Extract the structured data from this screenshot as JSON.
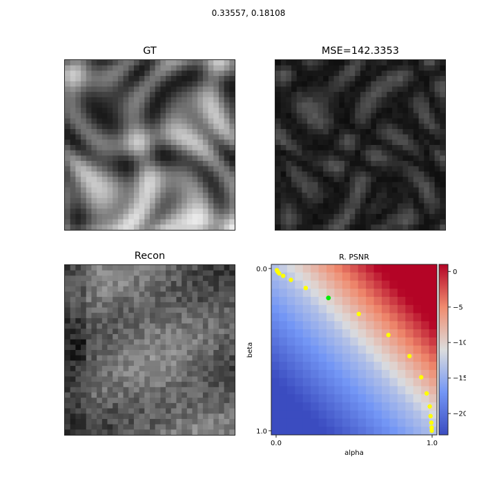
{
  "suptitle": "0.33557, 0.18108",
  "panels": {
    "gt_title": "GT",
    "mse_title": "MSE=142.3353",
    "recon_title": "Recon"
  },
  "chart_data": {
    "type": "heatmap",
    "title": "R. PSNR",
    "xlabel": "alpha",
    "ylabel": "beta",
    "x_ticks": [
      "0.0",
      "1.0"
    ],
    "y_ticks": [
      "0.0",
      "1.0"
    ],
    "xlim": [
      0.0,
      1.0
    ],
    "ylim": [
      0.0,
      1.0
    ],
    "y_inverted": true,
    "grid": false,
    "colormap": "coolwarm",
    "colorbar": {
      "range": [
        -23,
        1
      ],
      "ticks": [
        "0",
        "−5",
        "−10",
        "−15",
        "−20"
      ],
      "tick_values": [
        0,
        -5,
        -10,
        -15,
        -20
      ]
    },
    "points": [
      {
        "alpha": 0.005,
        "beta": 0.01
      },
      {
        "alpha": 0.01,
        "beta": 0.02
      },
      {
        "alpha": 0.02,
        "beta": 0.03
      },
      {
        "alpha": 0.045,
        "beta": 0.045
      },
      {
        "alpha": 0.095,
        "beta": 0.07
      },
      {
        "alpha": 0.19,
        "beta": 0.12
      },
      {
        "alpha": 0.53,
        "beta": 0.28
      },
      {
        "alpha": 0.72,
        "beta": 0.41
      },
      {
        "alpha": 0.855,
        "beta": 0.54
      },
      {
        "alpha": 0.93,
        "beta": 0.67
      },
      {
        "alpha": 0.965,
        "beta": 0.77
      },
      {
        "alpha": 0.985,
        "beta": 0.85
      },
      {
        "alpha": 0.99,
        "beta": 0.91
      },
      {
        "alpha": 0.995,
        "beta": 0.95
      },
      {
        "alpha": 0.997,
        "beta": 0.98
      },
      {
        "alpha": 0.998,
        "beta": 1.0
      }
    ],
    "highlight": {
      "alpha": 0.33557,
      "beta": 0.18108
    },
    "point_color": "#ffff00",
    "highlight_color": "#00ee00"
  }
}
